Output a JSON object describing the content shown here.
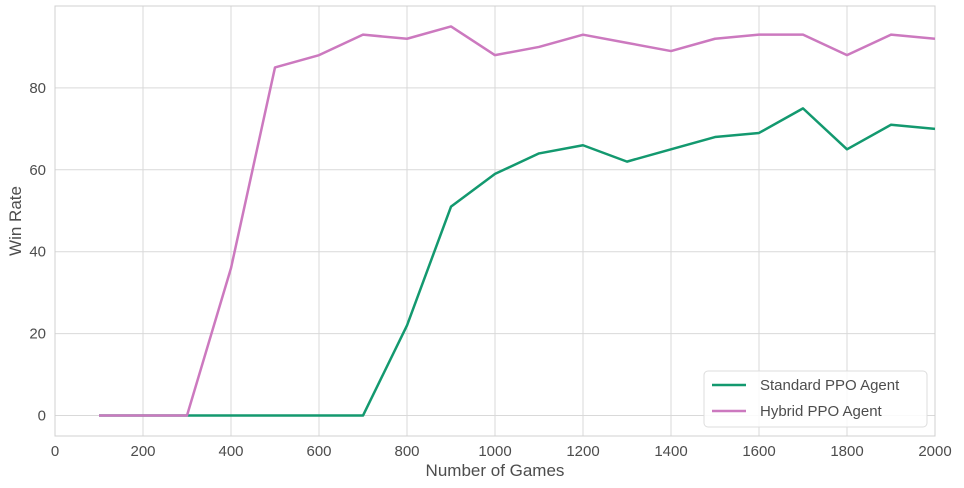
{
  "chart_data": {
    "type": "line",
    "xlabel": "Number of Games",
    "ylabel": "Win Rate",
    "xlim": [
      0,
      2000
    ],
    "ylim": [
      -5,
      100
    ],
    "xticks": [
      0,
      200,
      400,
      600,
      800,
      1000,
      1200,
      1400,
      1600,
      1800,
      2000
    ],
    "yticks": [
      0,
      20,
      40,
      60,
      80
    ],
    "grid": true,
    "legend_position": "bottom-right",
    "series": [
      {
        "name": "Standard PPO Agent",
        "color": "#13996f",
        "x": [
          100,
          200,
          300,
          400,
          500,
          600,
          700,
          800,
          900,
          1000,
          1100,
          1200,
          1300,
          1400,
          1500,
          1600,
          1700,
          1800,
          1900,
          2000
        ],
        "values": [
          0,
          0,
          0,
          0,
          0,
          0,
          0,
          22,
          51,
          59,
          64,
          66,
          62,
          65,
          68,
          69,
          75,
          65,
          71,
          70
        ]
      },
      {
        "name": "Hybrid PPO Agent",
        "color": "#cc79bf",
        "x": [
          100,
          200,
          300,
          400,
          500,
          600,
          700,
          800,
          900,
          1000,
          1100,
          1200,
          1300,
          1400,
          1500,
          1600,
          1700,
          1800,
          1900,
          2000
        ],
        "values": [
          0,
          0,
          0,
          36,
          85,
          88,
          93,
          92,
          95,
          88,
          90,
          93,
          91,
          89,
          92,
          93,
          93,
          88,
          93,
          92
        ]
      }
    ]
  }
}
